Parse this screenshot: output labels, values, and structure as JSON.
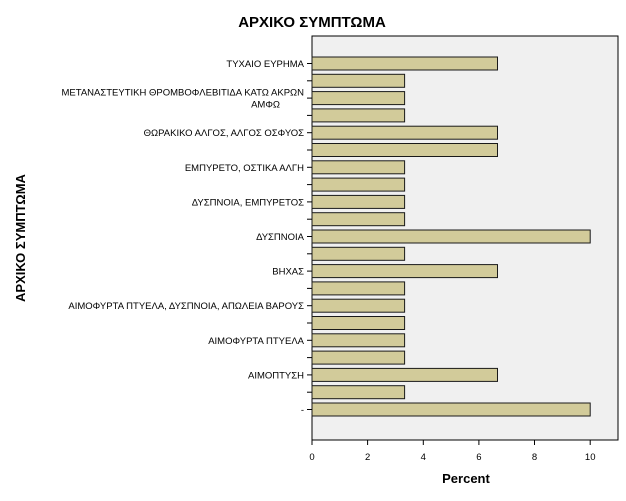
{
  "chart_data": {
    "type": "bar",
    "orientation": "horizontal",
    "title": "ΑΡΧΙΚΟ ΣΥΜΠΤΩΜΑ",
    "xlabel": "Percent",
    "ylabel": "ΑΡΧΙΚΟ ΣΥΜΠΤΩΜΑ",
    "xlim": [
      0,
      11
    ],
    "xticks": [
      0,
      2,
      4,
      6,
      8,
      10
    ],
    "grid": false,
    "categories": [
      "ΤΥΧΑΙΟ ΕΥΡΗΜΑ",
      "",
      "ΜΕΤΑΝΑΣΤΕΥΤΙΚΗ ΘΡΟΜΒΟΦΛΕΒΙΤΙΔΑ ΚΑΤΩ ΑΚΡΩΝ ΑΜΦΩ",
      "",
      "ΘΩΡΑΚΙΚΟ ΑΛΓΟΣ, ΑΛΓΟΣ ΟΣΦΥΟΣ",
      "",
      "ΕΜΠΥΡΕΤΟ, ΟΣΤΙΚΑ ΑΛΓΗ",
      "",
      "ΔΥΣΠΝΟΙΑ, ΕΜΠΥΡΕΤΟΣ",
      "",
      "ΔΥΣΠΝΟΙΑ",
      "",
      "ΒΗΧΑΣ",
      "",
      "ΑΙΜΟΦΥΡΤΑ ΠΤΥΕΛΑ, ΔΥΣΠΝΟΙΑ, ΑΠΩΛΕΙΑ ΒΑΡΟΥΣ",
      "",
      "ΑΙΜΟΦΥΡΤΑ ΠΤΥΕΛΑ",
      "",
      "ΑΙΜΟΠΤΥΣΗ",
      "",
      "-"
    ],
    "values": [
      6.67,
      3.33,
      3.33,
      3.33,
      6.67,
      6.67,
      3.33,
      3.33,
      3.33,
      3.33,
      10,
      3.33,
      6.67,
      3.33,
      3.33,
      3.33,
      3.33,
      3.33,
      6.67,
      3.33,
      10
    ],
    "colors": {
      "bar_fill": "#d2cb9a",
      "bar_stroke": "#1a1a1a",
      "plot_bg": "#f0f0f0",
      "axis": "#000000"
    }
  }
}
